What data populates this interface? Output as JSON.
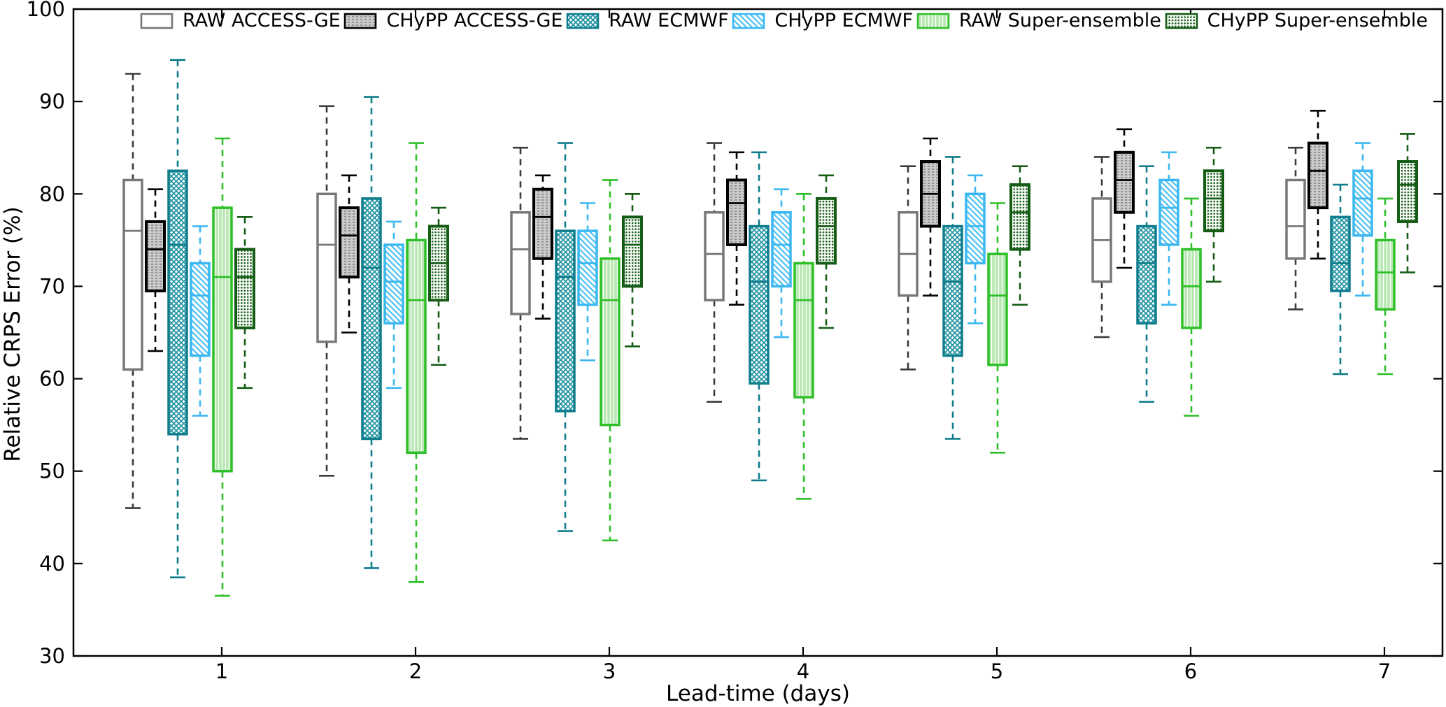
{
  "figure": {
    "background": "#ffffff"
  },
  "chart_data": {
    "type": "boxplot",
    "title": "",
    "xlabel": "Lead-time (days)",
    "ylabel": "Relative CRPS Error (%)",
    "x_categories": [
      1,
      2,
      3,
      4,
      5,
      6,
      7
    ],
    "x_tick_labels": [
      "1",
      "2",
      "3",
      "4",
      "5",
      "6",
      "7"
    ],
    "y_tick_labels": [
      "30",
      "40",
      "50",
      "60",
      "70",
      "80",
      "90",
      "100"
    ],
    "yticks": [
      30,
      40,
      50,
      60,
      70,
      80,
      90,
      100
    ],
    "ylim": [
      30,
      100
    ],
    "grid": false,
    "legend_position": "top",
    "box_stat_order": [
      "whisker_low",
      "q1",
      "median",
      "q3",
      "whisker_high"
    ],
    "series": [
      {
        "name": "RAW ACCESS-GE",
        "edge_color": "#787878",
        "whisker_color": "#3a3a3a",
        "median_color": "#787878",
        "fill_color": "#ffffff",
        "pattern": "none",
        "pattern_color": "#ffffff",
        "edge_width": 3.5,
        "boxes": [
          [
            46,
            61,
            76,
            81.5,
            93
          ],
          [
            49.5,
            64,
            74.5,
            80,
            89.5
          ],
          [
            53.5,
            67,
            74,
            78,
            85
          ],
          [
            57.5,
            68.5,
            73.5,
            78,
            85.5
          ],
          [
            61,
            69,
            73.5,
            78,
            83
          ],
          [
            64.5,
            70.5,
            75,
            79.5,
            84
          ],
          [
            67.5,
            73,
            76.5,
            81.5,
            85
          ]
        ]
      },
      {
        "name": "CHyPP ACCESS-GE",
        "edge_color": "#000000",
        "whisker_color": "#000000",
        "median_color": "#000000",
        "fill_color": "#cbcbcb",
        "pattern": "dot-rows",
        "pattern_color": "#6e6e6e",
        "edge_width": 4,
        "boxes": [
          [
            63,
            69.5,
            74,
            77,
            80.5
          ],
          [
            65,
            71,
            75.5,
            78.5,
            82
          ],
          [
            66.5,
            73,
            77.5,
            80.5,
            82
          ],
          [
            68,
            74.5,
            79,
            81.5,
            84.5
          ],
          [
            69,
            76.5,
            80,
            83.5,
            86
          ],
          [
            72,
            78,
            81.5,
            84.5,
            87
          ],
          [
            73,
            78.5,
            82.5,
            85.5,
            89
          ]
        ]
      },
      {
        "name": "RAW ECMWF",
        "edge_color": "#0f7d8c",
        "whisker_color": "#0f7d8c",
        "median_color": "#0f7d8c",
        "fill_color": "#ffffff",
        "pattern": "crosshatch",
        "pattern_color": "#2495a4",
        "edge_width": 3.5,
        "boxes": [
          [
            38.5,
            54,
            74.5,
            82.5,
            94.5
          ],
          [
            39.5,
            53.5,
            72,
            79.5,
            90.5
          ],
          [
            43.5,
            56.5,
            71,
            76,
            85.5
          ],
          [
            49,
            59.5,
            70.5,
            76.5,
            84.5
          ],
          [
            53.5,
            62.5,
            70.5,
            76.5,
            84
          ],
          [
            57.5,
            66,
            72.5,
            76.5,
            83
          ],
          [
            60.5,
            69.5,
            72.5,
            77.5,
            81
          ]
        ]
      },
      {
        "name": "CHyPP ECMWF",
        "edge_color": "#3bb8f1",
        "whisker_color": "#3bb8f1",
        "median_color": "#3bb8f1",
        "fill_color": "#ffffff",
        "pattern": "diagonal",
        "pattern_color": "#4cc0f2",
        "edge_width": 3.5,
        "boxes": [
          [
            56,
            62.5,
            69,
            72.5,
            76.5
          ],
          [
            59,
            66,
            70.5,
            74.5,
            77
          ],
          [
            62,
            68,
            72.5,
            76,
            79
          ],
          [
            64.5,
            70,
            74.5,
            78,
            80.5
          ],
          [
            66,
            72.5,
            76.5,
            80,
            82
          ],
          [
            68,
            74.5,
            78.5,
            81.5,
            84.5
          ],
          [
            69,
            75.5,
            79.5,
            82.5,
            85.5
          ]
        ]
      },
      {
        "name": "RAW Super-ensemble",
        "edge_color": "#2fc029",
        "whisker_color": "#2fc029",
        "median_color": "#2fc029",
        "fill_color": "#b6e7b0",
        "pattern": "vertical",
        "pattern_color": "#ffffff",
        "edge_width": 3.5,
        "boxes": [
          [
            36.5,
            50,
            71,
            78.5,
            86
          ],
          [
            38,
            52,
            68.5,
            75,
            85.5
          ],
          [
            42.5,
            55,
            68.5,
            73,
            81.5
          ],
          [
            47,
            58,
            68.5,
            72.5,
            80
          ],
          [
            52,
            61.5,
            69,
            73.5,
            79
          ],
          [
            56,
            65.5,
            70,
            74,
            79.5
          ],
          [
            60.5,
            67.5,
            71.5,
            75,
            79.5
          ]
        ]
      },
      {
        "name": "CHyPP Super-ensemble",
        "edge_color": "#155c15",
        "whisker_color": "#155c15",
        "median_color": "#155c15",
        "fill_color": "#fdfdfd",
        "pattern": "dots",
        "pattern_color": "#176117",
        "edge_width": 4,
        "boxes": [
          [
            59,
            65.5,
            71,
            74,
            77.5
          ],
          [
            61.5,
            68.5,
            72.5,
            76.5,
            78.5
          ],
          [
            63.5,
            70,
            74.5,
            77.5,
            80
          ],
          [
            65.5,
            72.5,
            76.5,
            79.5,
            82
          ],
          [
            68,
            74,
            78,
            81,
            83
          ],
          [
            70.5,
            76,
            79.5,
            82.5,
            85
          ],
          [
            71.5,
            77,
            81,
            83.5,
            86.5
          ]
        ]
      }
    ]
  }
}
